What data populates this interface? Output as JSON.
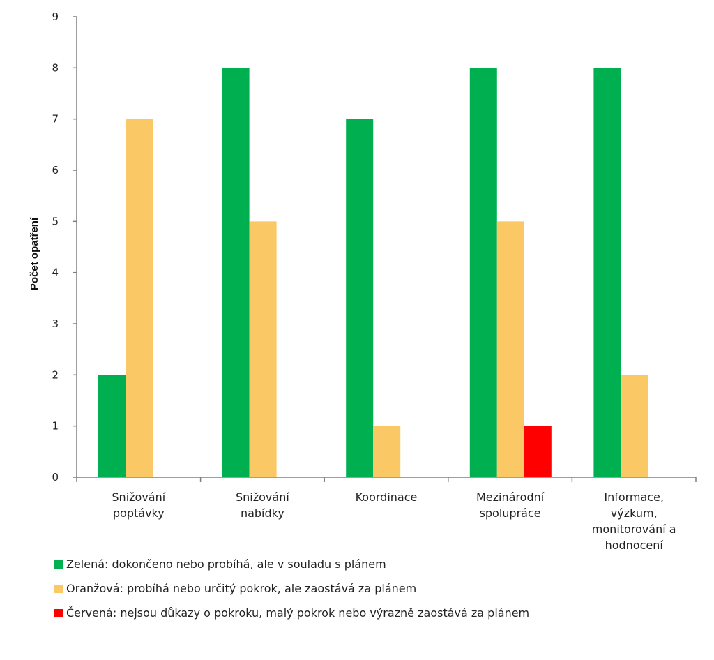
{
  "chart_data": {
    "type": "bar",
    "title": "",
    "xlabel": "",
    "ylabel": "Počet opatření",
    "ylim": [
      0,
      9
    ],
    "yticks": [
      0,
      1,
      2,
      3,
      4,
      5,
      6,
      7,
      8,
      9
    ],
    "grid": false,
    "legend_position": "bottom",
    "categories": [
      [
        "Snižování",
        "poptávky"
      ],
      [
        "Snižování",
        "nabídky"
      ],
      [
        "Koordinace"
      ],
      [
        "Mezinárodní",
        "spolupráce"
      ],
      [
        "Informace,",
        "výzkum,",
        "monitorování a",
        "hodnocení"
      ]
    ],
    "series": [
      {
        "name": "Zelená: dokončeno nebo probíhá, ale v souladu s plánem",
        "color": "#00b050",
        "values": [
          2,
          8,
          7,
          8,
          8
        ]
      },
      {
        "name": "Oranžová: probíhá nebo určitý pokrok, ale zaostává za plánem",
        "color": "#fac864",
        "values": [
          7,
          5,
          1,
          5,
          2
        ]
      },
      {
        "name": "Červená: nejsou důkazy o pokroku, malý pokrok nebo výrazně zaostává za plánem",
        "color": "#ff0000",
        "values": [
          0,
          0,
          0,
          1,
          0
        ]
      }
    ]
  }
}
